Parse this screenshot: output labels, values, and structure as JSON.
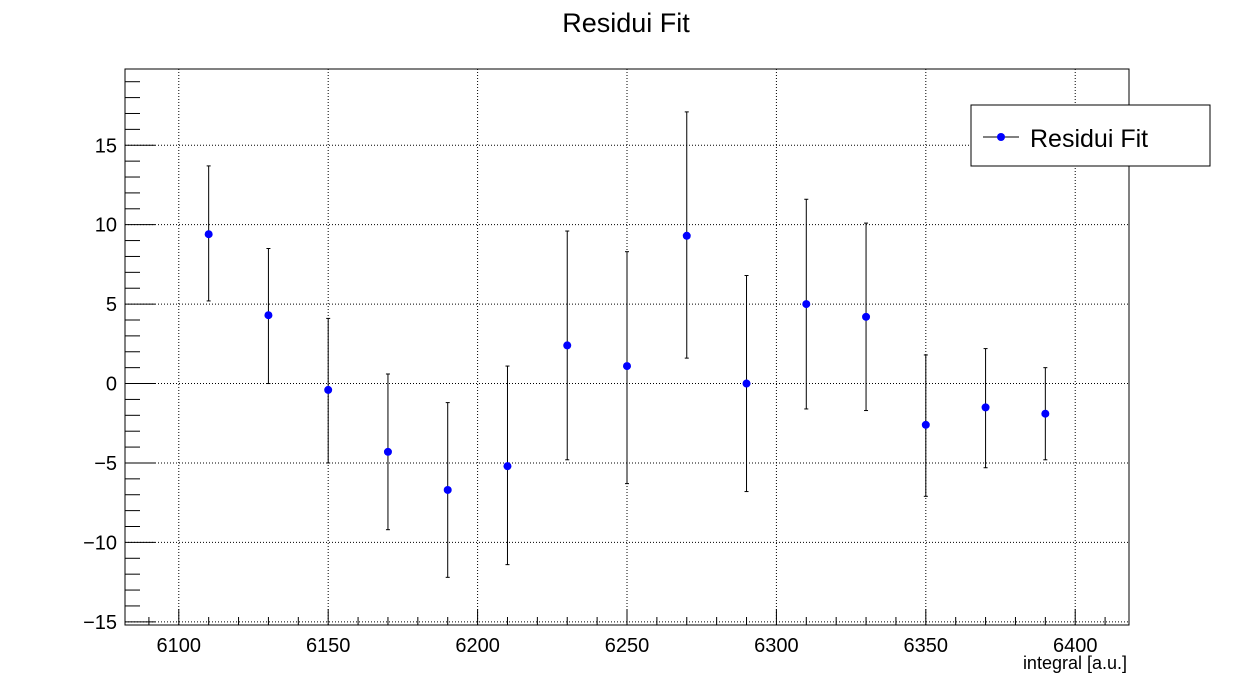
{
  "chart_data": {
    "type": "scatter",
    "title": "Residui Fit",
    "xlabel": "integral [a.u.]",
    "ylabel": "",
    "xlim": [
      6082,
      6418
    ],
    "ylim": [
      -15.2,
      19.8
    ],
    "x_ticks": [
      6100,
      6150,
      6200,
      6250,
      6300,
      6350,
      6400
    ],
    "x_tick_labels": [
      "6100",
      "6150",
      "6200",
      "6250",
      "6300",
      "6350",
      "6400"
    ],
    "y_ticks": [
      -15,
      -10,
      -5,
      0,
      5,
      10,
      15
    ],
    "y_tick_labels": [
      "−15",
      "−10",
      "−5",
      "0",
      "5",
      "10",
      "15"
    ],
    "grid": true,
    "legend": {
      "position": "top-right",
      "entries": [
        "Residui Fit"
      ]
    },
    "series": [
      {
        "name": "Residui Fit",
        "color": "#0000ff",
        "x": [
          6110,
          6130,
          6150,
          6170,
          6190,
          6210,
          6230,
          6250,
          6270,
          6290,
          6310,
          6330,
          6350,
          6370,
          6390
        ],
        "y": [
          9.4,
          4.3,
          -0.4,
          -4.3,
          -6.7,
          -5.2,
          2.4,
          1.1,
          9.3,
          0.0,
          5.0,
          4.2,
          -2.6,
          -1.5,
          -1.9
        ],
        "err_low": [
          4.2,
          4.3,
          4.6,
          4.9,
          5.5,
          6.2,
          7.2,
          7.4,
          7.7,
          6.8,
          6.6,
          5.9,
          4.5,
          3.8,
          2.9
        ],
        "err_high": [
          4.3,
          4.2,
          4.5,
          4.9,
          5.5,
          6.3,
          7.2,
          7.2,
          7.8,
          6.8,
          6.6,
          5.9,
          4.4,
          3.7,
          2.9
        ]
      }
    ]
  }
}
